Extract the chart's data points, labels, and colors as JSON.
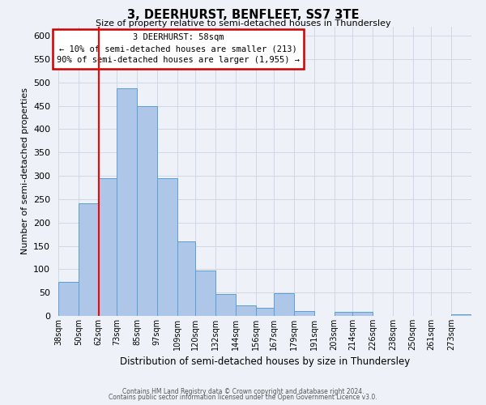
{
  "title": "3, DEERHURST, BENFLEET, SS7 3TE",
  "subtitle": "Size of property relative to semi-detached houses in Thundersley",
  "xlabel": "Distribution of semi-detached houses by size in Thundersley",
  "ylabel": "Number of semi-detached properties",
  "footer_line1": "Contains HM Land Registry data © Crown copyright and database right 2024.",
  "footer_line2": "Contains public sector information licensed under the Open Government Licence v3.0.",
  "bin_labels": [
    "38sqm",
    "50sqm",
    "62sqm",
    "73sqm",
    "85sqm",
    "97sqm",
    "109sqm",
    "120sqm",
    "132sqm",
    "144sqm",
    "156sqm",
    "167sqm",
    "179sqm",
    "191sqm",
    "203sqm",
    "214sqm",
    "226sqm",
    "238sqm",
    "250sqm",
    "261sqm",
    "273sqm"
  ],
  "bin_edges": [
    38,
    50,
    62,
    73,
    85,
    97,
    109,
    120,
    132,
    144,
    156,
    167,
    179,
    191,
    203,
    214,
    226,
    238,
    250,
    261,
    273
  ],
  "bar_heights": [
    72,
    241,
    295,
    488,
    450,
    295,
    160,
    97,
    46,
    22,
    17,
    48,
    10,
    0,
    8,
    8,
    0,
    0,
    0,
    0,
    3
  ],
  "bar_color": "#aec6e8",
  "bar_edge_color": "#5a9fd4",
  "grid_color": "#d0d8e8",
  "bg_color": "#eef2f8",
  "red_line_x": 62,
  "annotation_text_line1": "3 DEERHURST: 58sqm",
  "annotation_text_line2": "← 10% of semi-detached houses are smaller (213)",
  "annotation_text_line3": "90% of semi-detached houses are larger (1,955) →",
  "annotation_box_color": "#ffffff",
  "annotation_box_edge": "#cc0000",
  "ylim": [
    0,
    620
  ],
  "yticks": [
    0,
    50,
    100,
    150,
    200,
    250,
    300,
    350,
    400,
    450,
    500,
    550,
    600
  ]
}
